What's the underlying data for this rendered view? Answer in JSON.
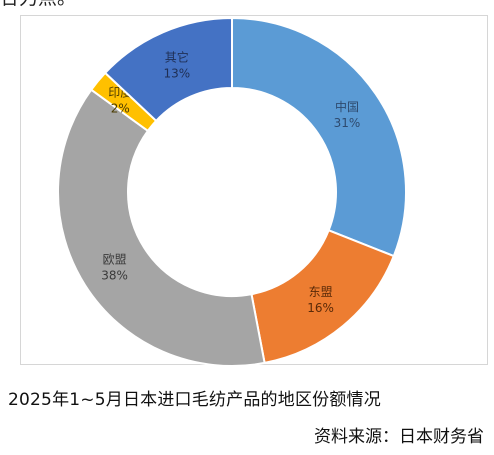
{
  "page": {
    "top_cut_text": "合力点。",
    "caption": "2025年1~5月日本进口毛纺产品的地区份额情况",
    "source": "资料来源：日本财务省"
  },
  "chart_data": {
    "type": "pie",
    "subtype": "donut",
    "title": "",
    "legend": "none",
    "slices": [
      {
        "name": "中国",
        "value": 31,
        "label": "31%",
        "color": "#5b9bd5",
        "text_color": "#2e4a6e"
      },
      {
        "name": "东盟",
        "value": 16,
        "label": "16%",
        "color": "#ed7d31",
        "text_color": "#5a2a08"
      },
      {
        "name": "欧盟",
        "value": 38,
        "label": "38%",
        "color": "#a5a5a5",
        "text_color": "#3a3a3a"
      },
      {
        "name": "印度",
        "value": 2,
        "label": "2%",
        "color": "#ffc000",
        "text_color": "#4a3a00"
      },
      {
        "name": "其它",
        "value": 13,
        "label": "13%",
        "color": "#4472c4",
        "text_color": "#1f2f55"
      }
    ]
  }
}
